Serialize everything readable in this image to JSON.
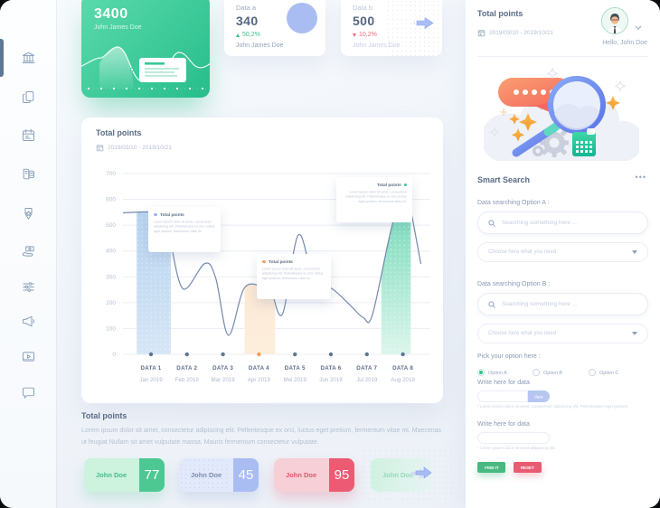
{
  "colors": {
    "green": "#2fbf8e",
    "blue": "#a9bdf2",
    "red": "#ec5a73",
    "orange": "#f0a05e",
    "slate": "#5a6b85"
  },
  "sidebar": {
    "items": [
      "bank",
      "copy",
      "calendar",
      "data-stack",
      "medal",
      "payment",
      "sliders",
      "megaphone",
      "media",
      "chat"
    ],
    "active_index": 0
  },
  "hero": {
    "value": "3400",
    "name": "John James Doe"
  },
  "stat_cards": [
    {
      "label": "Data a",
      "value": "340",
      "delta": "50,2%",
      "direction": "up",
      "name": "John James Doe"
    },
    {
      "label": "Data b",
      "value": "500",
      "delta": "10,2%",
      "direction": "down",
      "name": "John James Doe"
    }
  ],
  "chart_card": {
    "title": "Total points",
    "date_range": "2019/03/10 - 2019/10/21",
    "tooltips": [
      {
        "title": "Total points",
        "color": "#9db4e8",
        "body": "Lorem ipsum dolor sit amet, consectetur adipiscing elit. Pellentesque ex orci, luctus eget pretium, fermentum vitae mi."
      },
      {
        "title": "Total points",
        "color": "#f2a05c",
        "body": "Lorem ipsum dolor sit amet, consectetur adipiscing elit. Pellentesque ex orci, luctus eget pretium, fermentum vitae mi."
      },
      {
        "title": "Total points",
        "color": "#35c797",
        "body": "Lorem ipsum dolor sit amet, consectetur adipiscing elit. Pellentesque ex orci, luctus eget pretium, fermentum vitae mi."
      }
    ]
  },
  "chart_data": {
    "type": "area",
    "title": "Total points",
    "x_categories": [
      "DATA 1",
      "DATA 2",
      "DATA 3",
      "DATA 4",
      "DATA 5",
      "DATA 6",
      "DATA 7",
      "DATA 8"
    ],
    "x_sublabels": [
      "Jan 2019",
      "Feb 2019",
      "Mar 2019",
      "Apr 2019",
      "Mei 2019",
      "Jun 2019",
      "Jul 2019",
      "Aug 2019"
    ],
    "y_ticks": [
      0,
      100,
      200,
      300,
      400,
      500,
      600,
      700
    ],
    "ylim": [
      0,
      700
    ],
    "grid": true,
    "legend": "none",
    "series": [
      {
        "name": "Total points",
        "color": "#7389ac",
        "points": [
          [
            -0.78,
            548
          ],
          [
            0.3,
            548
          ],
          [
            0.45,
            495
          ],
          [
            0.55,
            430
          ],
          [
            0.9,
            253
          ],
          [
            1.5,
            352
          ],
          [
            1.8,
            295
          ],
          [
            2.15,
            74
          ],
          [
            2.6,
            258
          ],
          [
            3.15,
            262
          ],
          [
            3.3,
            272
          ],
          [
            3.65,
            155
          ],
          [
            4.1,
            463
          ],
          [
            4.55,
            268
          ],
          [
            5.0,
            257
          ],
          [
            5.5,
            195
          ],
          [
            5.9,
            142
          ],
          [
            6.15,
            152
          ],
          [
            6.65,
            470
          ],
          [
            7.0,
            648
          ],
          [
            7.12,
            628
          ],
          [
            7.5,
            350
          ]
        ]
      }
    ],
    "highlight_bands": [
      {
        "from": -0.4,
        "to": 0.55,
        "color_top": "#aecdec",
        "color_bottom": "#d6e6f6",
        "dotted": true
      },
      {
        "from": 2.6,
        "to": 3.45,
        "color_top": "#fadfc5",
        "color_bottom": "#fdeedd",
        "dotted": false
      },
      {
        "from": 6.4,
        "to": 7.22,
        "color_top": "#5ed2ad",
        "color_bottom": "#dcf6ec",
        "dotted": true
      }
    ],
    "tick_dot_colors": [
      "#5e7695",
      "#5e7695",
      "#5e7695",
      "#f0a05e",
      "#5e7695",
      "#5e7695",
      "#5e7695",
      "#5e7695"
    ]
  },
  "summary": {
    "title": "Total points",
    "body": "Lorem ipsum dolor sit amet, consectetur adipiscing elit. Pellentesque ex orci, luctus eget pretium, fermentum vitae mi. Maecenas ut feugiat Nullam sit amet vulputate massa. Mauris fermentum consectetur vulputate.",
    "cards": [
      {
        "name": "John Doe",
        "value": "77",
        "theme": "green"
      },
      {
        "name": "John Doe",
        "value": "45",
        "theme": "blue"
      },
      {
        "name": "John Doe",
        "value": "95",
        "theme": "red"
      },
      {
        "name": "John Doe",
        "value": "",
        "theme": "ghost"
      }
    ]
  },
  "right_panel": {
    "title": "Total points",
    "date_range": "2019/03/10 - 2019/10/21",
    "greeting": "Hello, John Doe",
    "smart_search": {
      "title": "Smart Search",
      "menu": "•••",
      "option_a_label": "Data searching Option A :",
      "option_b_label": "Data searching Option B :",
      "search_placeholder": "Searching something here ...",
      "select_placeholder": "Choose here what you need"
    },
    "pick": {
      "label": "Pick your option here :",
      "options": [
        {
          "label": "Option A",
          "selected": true
        },
        {
          "label": "Option B",
          "selected": false
        },
        {
          "label": "Option C",
          "selected": false
        }
      ]
    },
    "write_1": {
      "label": "Write here for data",
      "value": "",
      "suffix": "data",
      "helper": "* Lorem ipsum dolor sit amet, consectetur adipiscing elit. Pellentesque eget pretium."
    },
    "write_2": {
      "label": "Write here for data",
      "value": "",
      "helper": "* Lorem ipsum dolor sit amet adipiscing elit."
    },
    "actions": {
      "find": "FIND IT",
      "reset": "RESET"
    }
  }
}
